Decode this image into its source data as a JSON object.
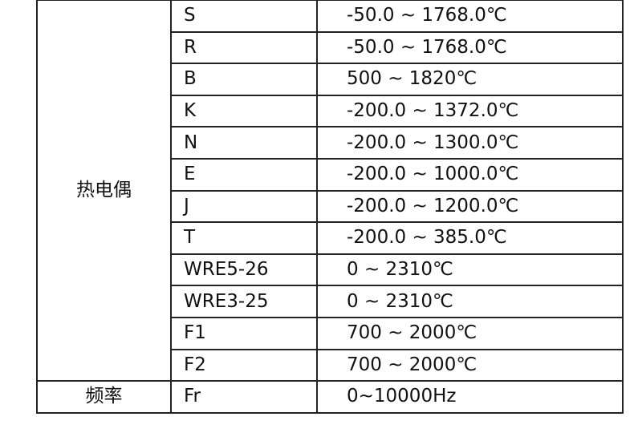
{
  "groups": [
    {
      "category": "热电偶",
      "rows": [
        {
          "type": "S",
          "range": "-50.0 ~ 1768.0℃"
        },
        {
          "type": "R",
          "range": "-50.0 ~ 1768.0℃"
        },
        {
          "type": "B",
          "range": "500 ~ 1820℃"
        },
        {
          "type": "K",
          "range": "-200.0 ~ 1372.0℃"
        },
        {
          "type": "N",
          "range": "-200.0 ~ 1300.0℃"
        },
        {
          "type": "E",
          "range": "-200.0 ~ 1000.0℃"
        },
        {
          "type": "J",
          "range": "-200.0 ~ 1200.0℃"
        },
        {
          "type": "T",
          "range": "-200.0 ~ 385.0℃"
        },
        {
          "type": "WRE5-26",
          "range": "0 ~ 2310℃"
        },
        {
          "type": "WRE3-25",
          "range": "0 ~ 2310℃"
        },
        {
          "type": "F1",
          "range": "700 ~ 2000℃"
        },
        {
          "type": "F2",
          "range": "700 ~ 2000℃"
        }
      ]
    },
    {
      "category": "频率",
      "rows": [
        {
          "type": "Fr",
          "range": "0~10000Hz"
        }
      ]
    }
  ]
}
